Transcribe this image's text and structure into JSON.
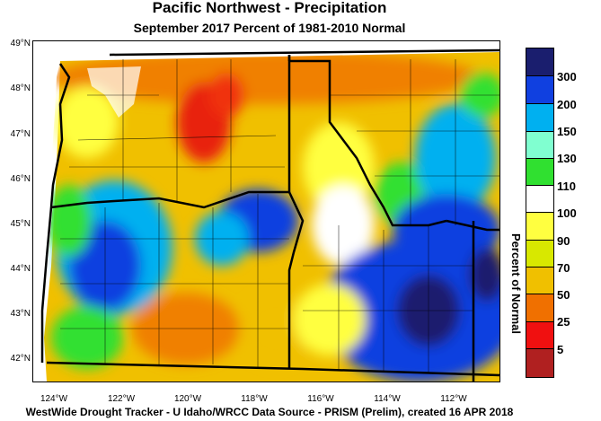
{
  "title": "Pacific Northwest - Precipitation",
  "subtitle": "September 2017  Percent of 1981-2010 Normal",
  "footer": "WestWide Drought Tracker - U Idaho/WRCC  Data Source - PRISM (Prelim), created 16 APR 2018",
  "lat_labels": [
    "49°N",
    "48°N",
    "47°N",
    "46°N",
    "45°N",
    "44°N",
    "43°N",
    "42°N"
  ],
  "lon_labels": [
    "124°W",
    "122°W",
    "120°W",
    "118°W",
    "116°W",
    "114°W",
    "112°W"
  ],
  "colorbar": {
    "title": "Percent of Normal",
    "labels": [
      "300",
      "200",
      "150",
      "130",
      "110",
      "100",
      "90",
      "70",
      "50",
      "25",
      "5"
    ],
    "colors": [
      "#1a1e6e",
      "#1040e0",
      "#00b0f0",
      "#80ffd0",
      "#30e030",
      "#ffffff",
      "#ffff40",
      "#d8e800",
      "#f0c000",
      "#f07000",
      "#f01010",
      "#b02020"
    ]
  }
}
